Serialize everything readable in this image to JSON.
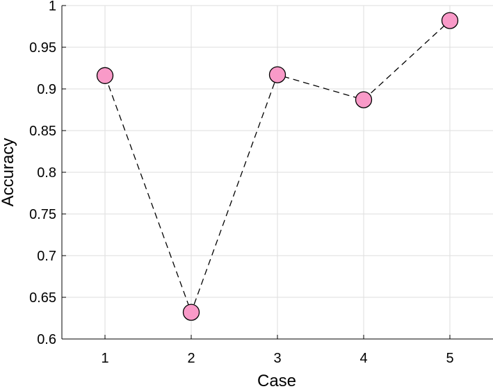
{
  "chart_data": {
    "type": "line",
    "title": "",
    "xlabel": "Case",
    "ylabel": "Accuracy",
    "x": [
      1,
      2,
      3,
      4,
      5
    ],
    "series": [
      {
        "values": [
          0.916,
          0.632,
          0.917,
          0.887,
          0.982
        ]
      }
    ],
    "xlim": [
      0.5,
      5.5
    ],
    "ylim": [
      0.6,
      1.0
    ],
    "xticks": [
      "1",
      "2",
      "3",
      "4",
      "5"
    ],
    "yticks": [
      "0.6",
      "0.65",
      "0.7",
      "0.75",
      "0.8",
      "0.85",
      "0.9",
      "0.95",
      "1"
    ],
    "grid": true,
    "legend": "none",
    "line_style": "dashed",
    "colors": {
      "line": "#000000",
      "marker_fill": "#f99ac8",
      "marker_edge": "#000000"
    }
  }
}
